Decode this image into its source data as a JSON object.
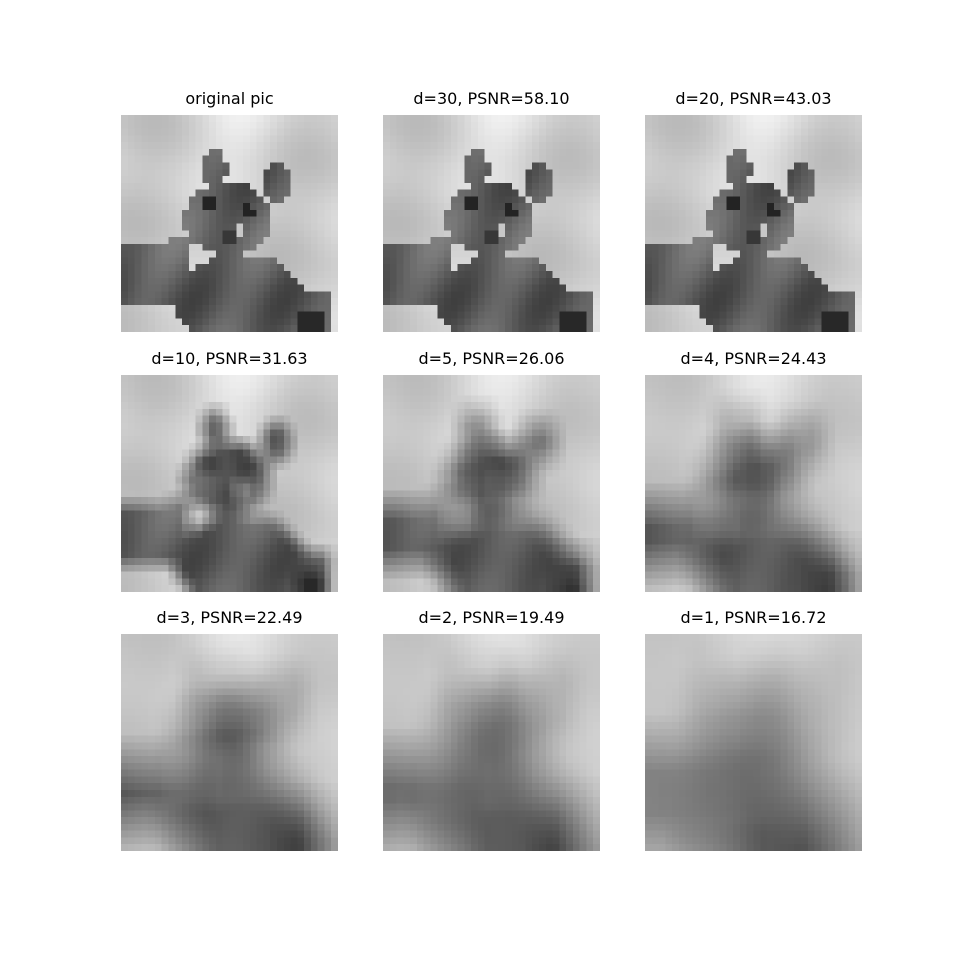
{
  "panels": [
    {
      "title": "original pic",
      "d": null,
      "psnr": null,
      "image": "grayscale-teddy-bear"
    },
    {
      "title": "d=30, PSNR=58.10",
      "d": 30,
      "psnr": 58.1,
      "image": "grayscale-teddy-bear"
    },
    {
      "title": "d=20, PSNR=43.03",
      "d": 20,
      "psnr": 43.03,
      "image": "grayscale-teddy-bear"
    },
    {
      "title": "d=10, PSNR=31.63",
      "d": 10,
      "psnr": 31.63,
      "image": "grayscale-teddy-bear"
    },
    {
      "title": "d=5, PSNR=26.06",
      "d": 5,
      "psnr": 26.06,
      "image": "grayscale-teddy-bear"
    },
    {
      "title": "d=4, PSNR=24.43",
      "d": 4,
      "psnr": 24.43,
      "image": "grayscale-teddy-bear"
    },
    {
      "title": "d=3, PSNR=22.49",
      "d": 3,
      "psnr": 22.49,
      "image": "grayscale-teddy-bear"
    },
    {
      "title": "d=2, PSNR=19.49",
      "d": 2,
      "psnr": 19.49,
      "image": "grayscale-teddy-bear"
    },
    {
      "title": "d=1, PSNR=16.72",
      "d": 1,
      "psnr": 16.72,
      "image": "grayscale-teddy-bear"
    }
  ]
}
